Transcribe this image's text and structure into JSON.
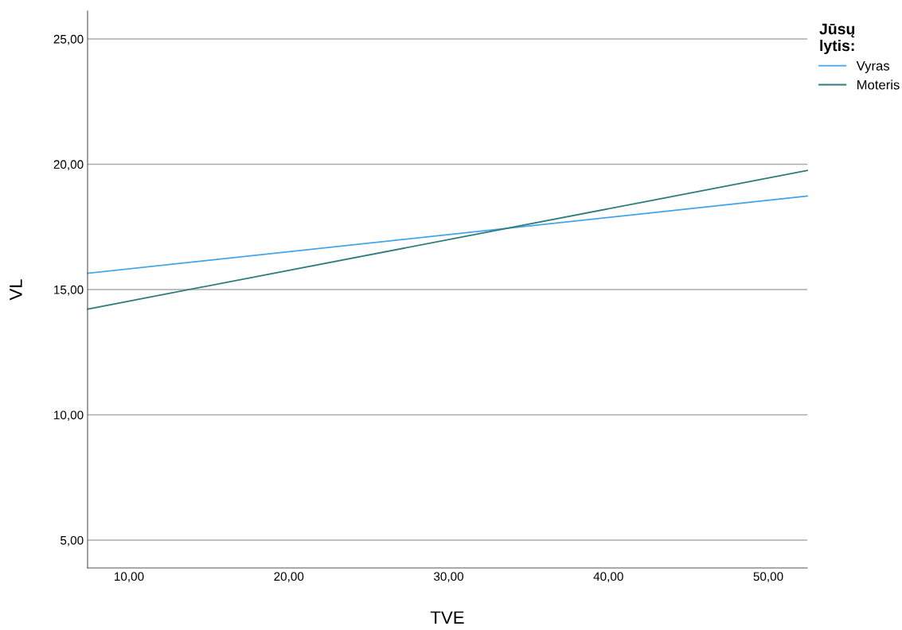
{
  "chart_data": {
    "type": "line",
    "xlabel": "TVE",
    "ylabel": "VL",
    "legend_title": "Jūsų\nlytis:",
    "x": [
      7.41,
      52.44
    ],
    "series": [
      {
        "name": "Vyras",
        "color": "#42a5e8",
        "values": [
          15.65,
          18.73
        ]
      },
      {
        "name": "Moteris",
        "color": "#2e7d7b",
        "values": [
          14.22,
          19.75
        ]
      }
    ],
    "xlim": [
      7.41,
      52.44
    ],
    "ylim": [
      3.89,
      26.11
    ],
    "xticks": [
      {
        "value": 10,
        "label": "10,00"
      },
      {
        "value": 20,
        "label": "20,00"
      },
      {
        "value": 30,
        "label": "30,00"
      },
      {
        "value": 40,
        "label": "40,00"
      },
      {
        "value": 50,
        "label": "50,00"
      }
    ],
    "yticks": [
      {
        "value": 5,
        "label": "5,00"
      },
      {
        "value": 10,
        "label": "10,00"
      },
      {
        "value": 15,
        "label": "15,00"
      },
      {
        "value": 20,
        "label": "20,00"
      },
      {
        "value": 25,
        "label": "25,00"
      }
    ],
    "grid": "y",
    "legend": "top right",
    "marker": "none",
    "line_style": "solid"
  }
}
